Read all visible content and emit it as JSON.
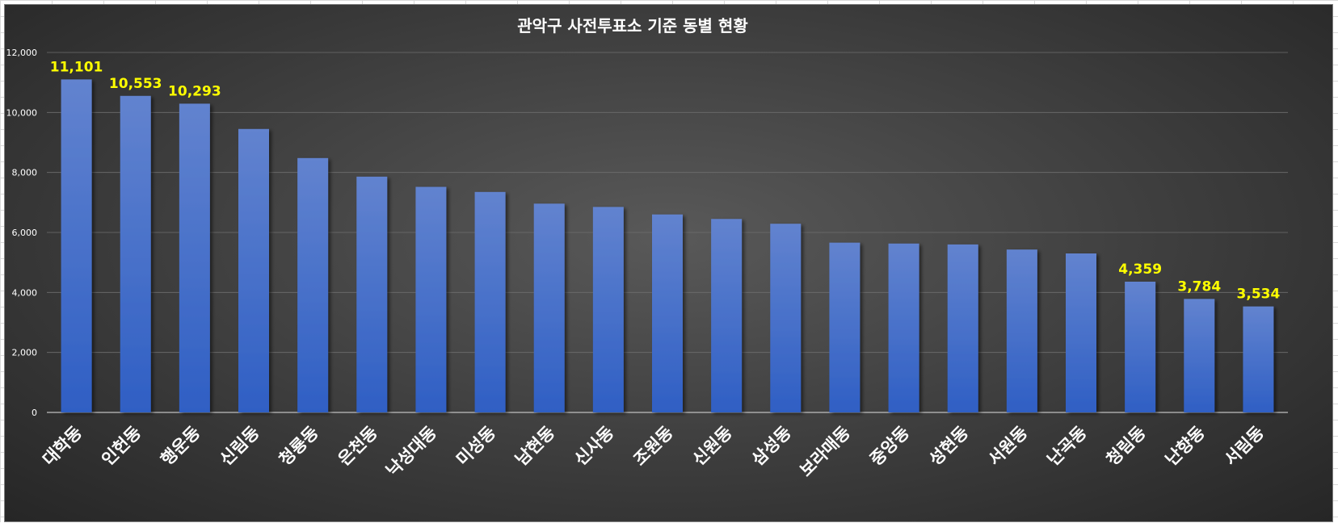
{
  "chart_data": {
    "type": "bar",
    "title": "관악구 사전투표소 기준 동별 현황",
    "xlabel": "",
    "ylabel": "",
    "ylim": [
      0,
      12000
    ],
    "yticks": [
      0,
      2000,
      4000,
      6000,
      8000,
      10000,
      12000
    ],
    "ytick_labels": [
      "0",
      "2,000",
      "4,000",
      "6,000",
      "8,000",
      "10,000",
      "12,000"
    ],
    "grid": true,
    "categories": [
      "대학동",
      "인헌동",
      "행운동",
      "신림동",
      "청룡동",
      "은천동",
      "낙성대동",
      "미성동",
      "남현동",
      "신사동",
      "조원동",
      "신원동",
      "삼성동",
      "보라매동",
      "중앙동",
      "성현동",
      "서원동",
      "난곡동",
      "청림동",
      "난향동",
      "서림동"
    ],
    "values": [
      11101,
      10553,
      10293,
      9450,
      8480,
      7860,
      7520,
      7350,
      6960,
      6850,
      6600,
      6450,
      6290,
      5660,
      5630,
      5600,
      5430,
      5300,
      4359,
      3784,
      3534
    ],
    "data_labels": [
      "11,101",
      "10,553",
      "10,293",
      "",
      "",
      "",
      "",
      "",
      "",
      "",
      "",
      "",
      "",
      "",
      "",
      "",
      "",
      "",
      "4,359",
      "3,784",
      "3,534"
    ],
    "colors": {
      "bar_top": "#6283cf",
      "bar_bottom": "#2f5fc4",
      "data_label": "#ffff00",
      "text": "#ffffff",
      "gridline": "#6e6e6e"
    }
  }
}
